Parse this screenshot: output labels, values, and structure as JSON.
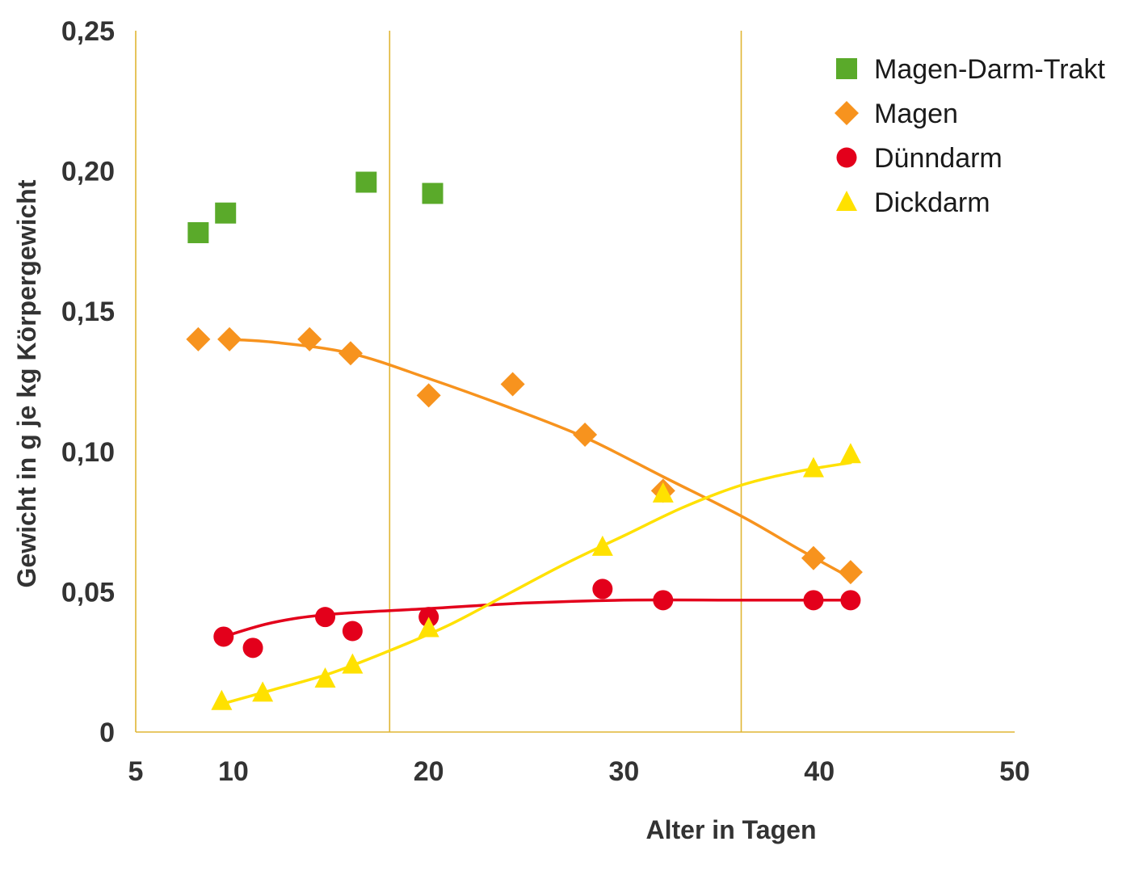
{
  "chart_data": {
    "type": "scatter",
    "title": "",
    "xlabel": "Alter in Tagen",
    "ylabel": "Gewicht in g je kg Körpergewicht",
    "xlim": [
      5,
      50
    ],
    "ylim": [
      0,
      0.25
    ],
    "x_ticks": [
      5,
      10,
      20,
      30,
      40,
      50
    ],
    "x_tick_labels": [
      "5",
      "10",
      "20",
      "30",
      "40",
      "50"
    ],
    "y_ticks": [
      0,
      0.05,
      0.1,
      0.15,
      0.2,
      0.25
    ],
    "y_tick_labels": [
      "0",
      "0,05",
      "0,10",
      "0,15",
      "0,20",
      "0,25"
    ],
    "vertical_gridlines_x": [
      5,
      18,
      36
    ],
    "legend_position": "top-right",
    "axis_color": "#e0b533",
    "series": [
      {
        "name": "Magen-Darm-Trakt",
        "marker": "square",
        "color": "#5aaa2a",
        "trendline": false,
        "points": [
          [
            8.2,
            0.178
          ],
          [
            9.6,
            0.185
          ],
          [
            16.8,
            0.196
          ],
          [
            20.2,
            0.192
          ]
        ]
      },
      {
        "name": "Magen",
        "marker": "diamond",
        "color": "#f7931e",
        "trendline": true,
        "points": [
          [
            8.2,
            0.14
          ],
          [
            9.8,
            0.14
          ],
          [
            13.9,
            0.14
          ],
          [
            16.0,
            0.135
          ],
          [
            20.0,
            0.12
          ],
          [
            24.3,
            0.124
          ],
          [
            28.0,
            0.106
          ],
          [
            32.0,
            0.086
          ],
          [
            39.7,
            0.062
          ],
          [
            41.6,
            0.057
          ]
        ],
        "curve": [
          [
            9.5,
            0.14
          ],
          [
            12,
            0.139
          ],
          [
            16,
            0.135
          ],
          [
            20,
            0.126
          ],
          [
            24,
            0.116
          ],
          [
            28,
            0.105
          ],
          [
            32,
            0.091
          ],
          [
            36,
            0.077
          ],
          [
            39,
            0.065
          ],
          [
            41.6,
            0.055
          ]
        ]
      },
      {
        "name": "Dünndarm",
        "marker": "circle",
        "color": "#e3001b",
        "trendline": true,
        "points": [
          [
            9.5,
            0.034
          ],
          [
            11.0,
            0.03
          ],
          [
            14.7,
            0.041
          ],
          [
            16.1,
            0.036
          ],
          [
            20.0,
            0.041
          ],
          [
            28.9,
            0.051
          ],
          [
            32.0,
            0.047
          ],
          [
            39.7,
            0.047
          ],
          [
            41.6,
            0.047
          ]
        ],
        "curve": [
          [
            9.5,
            0.034
          ],
          [
            12,
            0.039
          ],
          [
            15,
            0.042
          ],
          [
            20,
            0.044
          ],
          [
            25,
            0.046
          ],
          [
            30,
            0.047
          ],
          [
            36,
            0.047
          ],
          [
            41.6,
            0.047
          ]
        ]
      },
      {
        "name": "Dickdarm",
        "marker": "triangle",
        "color": "#ffe100",
        "trendline": true,
        "points": [
          [
            9.4,
            0.011
          ],
          [
            11.5,
            0.014
          ],
          [
            14.7,
            0.019
          ],
          [
            16.1,
            0.024
          ],
          [
            20.0,
            0.037
          ],
          [
            28.9,
            0.066
          ],
          [
            32.0,
            0.085
          ],
          [
            39.7,
            0.094
          ],
          [
            41.6,
            0.099
          ]
        ],
        "curve": [
          [
            9.4,
            0.01
          ],
          [
            12,
            0.015
          ],
          [
            15,
            0.021
          ],
          [
            18,
            0.029
          ],
          [
            21,
            0.038
          ],
          [
            24,
            0.049
          ],
          [
            27,
            0.06
          ],
          [
            30,
            0.07
          ],
          [
            33,
            0.08
          ],
          [
            36,
            0.088
          ],
          [
            39,
            0.093
          ],
          [
            41.6,
            0.096
          ]
        ]
      }
    ]
  }
}
